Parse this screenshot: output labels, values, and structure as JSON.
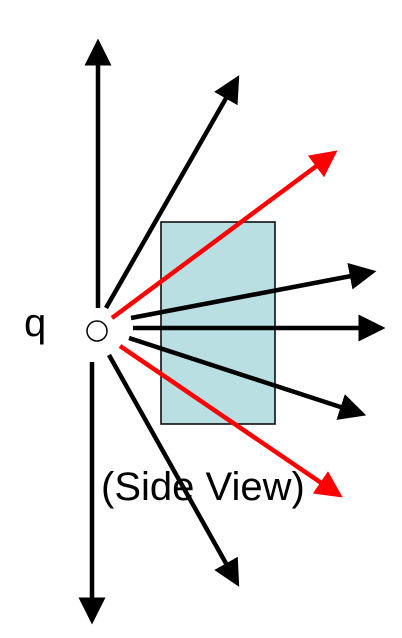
{
  "diagram": {
    "charge_label": "q",
    "view_label": "(Side View)",
    "colors": {
      "field_line": "#000000",
      "boundary_line": "#ff0000",
      "surface_fill": "#b9dfe3",
      "surface_stroke": "#000000",
      "charge_fill": "#ffffff",
      "charge_stroke": "#000000"
    }
  }
}
